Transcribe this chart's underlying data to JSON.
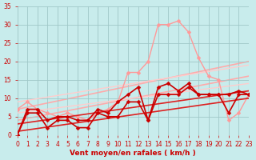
{
  "xlabel": "Vent moyen/en rafales ( km/h )",
  "background_color": "#c8ecec",
  "grid_color": "#a0c8c8",
  "tick_color": "#cc0000",
  "label_color": "#cc0000",
  "xlim": [
    0,
    23
  ],
  "ylim": [
    0,
    35
  ],
  "yticks": [
    0,
    5,
    10,
    15,
    20,
    25,
    30,
    35
  ],
  "xticks": [
    0,
    1,
    2,
    3,
    4,
    5,
    6,
    7,
    8,
    9,
    10,
    11,
    12,
    13,
    14,
    15,
    16,
    17,
    18,
    19,
    20,
    21,
    22,
    23
  ],
  "series": [
    {
      "x": [
        0,
        23
      ],
      "y": [
        7,
        20
      ],
      "color": "#ffaaaa",
      "linewidth": 1.2,
      "marker": null,
      "markersize": 0,
      "zorder": 1
    },
    {
      "x": [
        0,
        23
      ],
      "y": [
        4,
        16
      ],
      "color": "#ffaaaa",
      "linewidth": 1.2,
      "marker": null,
      "markersize": 0,
      "zorder": 1
    },
    {
      "x": [
        0,
        1,
        2,
        3,
        4,
        5,
        6,
        7,
        8,
        9,
        10,
        11,
        12,
        13,
        14,
        15,
        16,
        17,
        18,
        19,
        20,
        21,
        22,
        23
      ],
      "y": [
        7,
        9,
        7,
        6,
        5,
        6,
        5,
        4,
        6,
        7,
        9,
        17,
        17,
        20,
        30,
        30,
        31,
        28,
        21,
        16,
        15,
        4,
        6,
        11
      ],
      "color": "#ff9999",
      "linewidth": 1.0,
      "marker": "D",
      "markersize": 2.5,
      "zorder": 3
    },
    {
      "x": [
        0,
        23
      ],
      "y": [
        9,
        19
      ],
      "color": "#ffcccc",
      "linewidth": 1.0,
      "marker": null,
      "markersize": 0,
      "zorder": 2
    },
    {
      "x": [
        0,
        23
      ],
      "y": [
        6,
        14
      ],
      "color": "#ffcccc",
      "linewidth": 1.0,
      "marker": null,
      "markersize": 0,
      "zorder": 2
    },
    {
      "x": [
        0,
        1,
        2,
        3,
        4,
        5,
        6,
        7,
        8,
        9,
        10,
        11,
        12,
        13,
        14,
        15,
        16,
        17,
        18,
        19,
        20,
        21,
        22,
        23
      ],
      "y": [
        0,
        6,
        6,
        2,
        4,
        4,
        2,
        2,
        6,
        5,
        5,
        9,
        9,
        4,
        11,
        11,
        11,
        13,
        11,
        11,
        11,
        6,
        11,
        11
      ],
      "color": "#cc0000",
      "linewidth": 1.2,
      "marker": "D",
      "markersize": 2.5,
      "zorder": 5
    },
    {
      "x": [
        0,
        1,
        2,
        3,
        4,
        5,
        6,
        7,
        8,
        9,
        10,
        11,
        12,
        13,
        14,
        15,
        16,
        17,
        18,
        19,
        20,
        21,
        22,
        23
      ],
      "y": [
        0,
        7,
        7,
        4,
        5,
        5,
        4,
        4,
        7,
        6,
        9,
        11,
        13,
        4,
        13,
        14,
        12,
        14,
        11,
        11,
        11,
        11,
        12,
        11
      ],
      "color": "#cc0000",
      "linewidth": 1.2,
      "marker": "D",
      "markersize": 2.5,
      "zorder": 5
    },
    {
      "x": [
        0,
        23
      ],
      "y": [
        1,
        10
      ],
      "color": "#dd2222",
      "linewidth": 1.2,
      "marker": null,
      "markersize": 0,
      "zorder": 4
    },
    {
      "x": [
        0,
        23
      ],
      "y": [
        3,
        12
      ],
      "color": "#dd2222",
      "linewidth": 1.2,
      "marker": null,
      "markersize": 0,
      "zorder": 4
    }
  ]
}
